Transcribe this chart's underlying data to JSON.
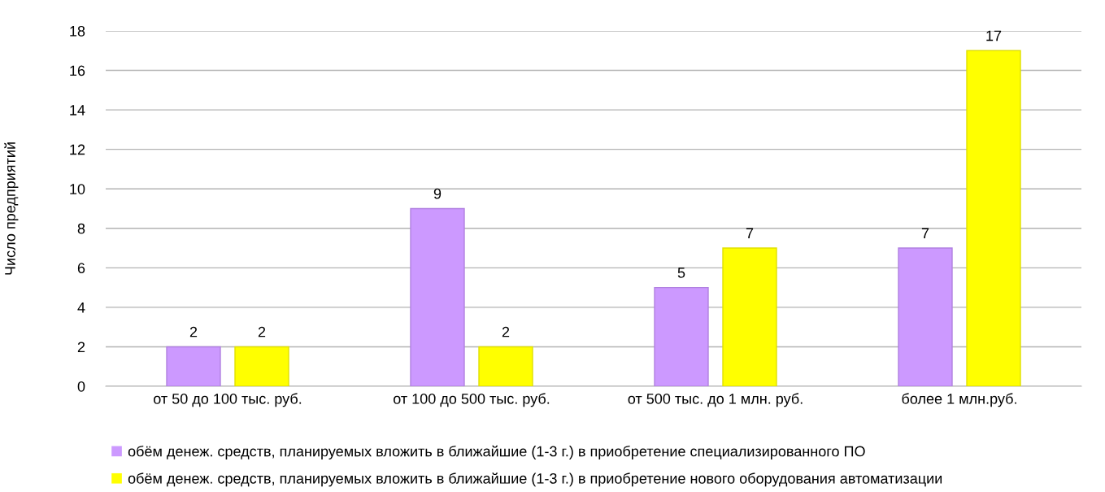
{
  "chart_data": {
    "type": "bar",
    "ylabel": "Число предприятий",
    "categories": [
      "от 50 до 100 тыс. руб.",
      "от 100 до 500 тыс. руб.",
      "от 500 тыс. до 1 млн. руб.",
      "более 1 млн.руб."
    ],
    "series": [
      {
        "name": "обём денеж. средств, планируемых вложить в ближайшие (1-3 г.) в приобретение специализированного ПО",
        "color": "#cc99ff",
        "values": [
          2,
          9,
          5,
          7
        ]
      },
      {
        "name": "обём денеж. средств, планируемых вложить в ближайшие (1-3 г.) в приобретение нового оборудования автоматизации",
        "color": "#ffff00",
        "values": [
          2,
          2,
          7,
          17
        ]
      }
    ],
    "ylim": [
      0,
      18
    ],
    "yticks": [
      0,
      2,
      4,
      6,
      8,
      10,
      12,
      14,
      16,
      18
    ],
    "grid": "y",
    "legend": "bottom",
    "data_labels": true
  }
}
